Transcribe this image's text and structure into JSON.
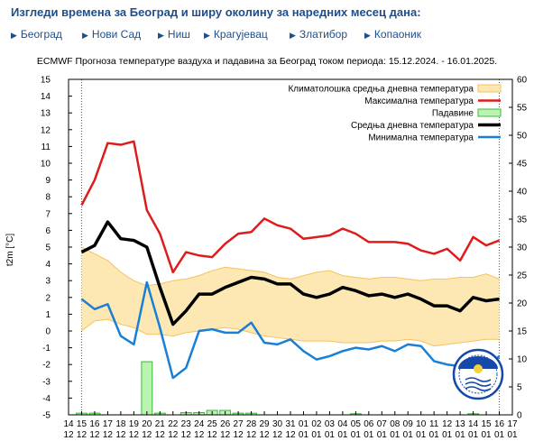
{
  "header": {
    "title": "Изгледи времена за Београд и ширу околину за наредних месец дана:"
  },
  "nav": {
    "cities": [
      "Београд",
      "Нови Сад",
      "Ниш",
      "Крагујевац",
      "Златибор",
      "Копаоник"
    ]
  },
  "icons": {
    "nav_arrow": "triangle-right-icon",
    "logo": "rhmz-logo"
  },
  "colors": {
    "max": "#dd1c1c",
    "mean": "#000000",
    "min": "#1a7fd6",
    "clim_fill": "#fde8b4",
    "clim_line": "#f3c35a",
    "precip_fill": "#b9f5b1",
    "precip_line": "#3cb83c",
    "title_blue": "#1f4e8c",
    "logo_blue": "#1548a8"
  },
  "chart_data": {
    "type": "line",
    "title": "ECMWF Прогноза температуре ваздуха и падавина за Београд током периода: 15.12.2024. - 16.01.2025.",
    "ylabel": "t2m [°C]",
    "ylim": [
      -5,
      15
    ],
    "y2lim": [
      0,
      60
    ],
    "y_ticks": [
      -5,
      -4,
      -3,
      -2,
      -1,
      0,
      1,
      2,
      3,
      4,
      5,
      6,
      7,
      8,
      9,
      10,
      11,
      12,
      13,
      14,
      15
    ],
    "y2_ticks": [
      0,
      5,
      10,
      15,
      20,
      25,
      30,
      35,
      40,
      45,
      50,
      55,
      60
    ],
    "x_tick_labels": [
      [
        "14",
        "12"
      ],
      [
        "15",
        "12"
      ],
      [
        "16",
        "12"
      ],
      [
        "17",
        "12"
      ],
      [
        "18",
        "12"
      ],
      [
        "19",
        "12"
      ],
      [
        "20",
        "12"
      ],
      [
        "21",
        "12"
      ],
      [
        "22",
        "12"
      ],
      [
        "23",
        "12"
      ],
      [
        "24",
        "12"
      ],
      [
        "25",
        "12"
      ],
      [
        "26",
        "12"
      ],
      [
        "27",
        "12"
      ],
      [
        "28",
        "12"
      ],
      [
        "29",
        "12"
      ],
      [
        "30",
        "12"
      ],
      [
        "31",
        "12"
      ],
      [
        "01",
        "01"
      ],
      [
        "02",
        "01"
      ],
      [
        "03",
        "01"
      ],
      [
        "04",
        "01"
      ],
      [
        "05",
        "01"
      ],
      [
        "06",
        "01"
      ],
      [
        "07",
        "01"
      ],
      [
        "08",
        "01"
      ],
      [
        "09",
        "01"
      ],
      [
        "10",
        "01"
      ],
      [
        "11",
        "01"
      ],
      [
        "12",
        "01"
      ],
      [
        "13",
        "01"
      ],
      [
        "14",
        "01"
      ],
      [
        "15",
        "01"
      ],
      [
        "16",
        "01"
      ],
      [
        "17",
        "01"
      ]
    ],
    "legend": [
      "Климатолошка средња дневна температура",
      "Максимална температура",
      "Падавине",
      "Средња дневна температура",
      "Минимална температура"
    ],
    "legend_position": "top-right",
    "x": [
      1,
      2,
      3,
      4,
      5,
      6,
      7,
      8,
      9,
      10,
      11,
      12,
      13,
      14,
      15,
      16,
      17,
      18,
      19,
      20,
      21,
      22,
      23,
      24,
      25,
      26,
      27,
      28,
      29,
      30,
      31,
      32,
      33
    ],
    "series": [
      {
        "name": "Максимална температура",
        "color_key": "max",
        "values": [
          7.5,
          9.0,
          11.2,
          11.1,
          11.3,
          7.2,
          5.8,
          3.5,
          4.7,
          4.5,
          4.4,
          5.2,
          5.8,
          5.9,
          6.7,
          6.3,
          6.1,
          5.5,
          5.6,
          5.7,
          6.1,
          5.8,
          5.3,
          5.3,
          5.3,
          5.2,
          4.8,
          4.6,
          4.9,
          4.2,
          5.6,
          5.1,
          5.4
        ]
      },
      {
        "name": "Средња дневна температура",
        "color_key": "mean",
        "values": [
          4.7,
          5.1,
          6.5,
          5.5,
          5.4,
          5.0,
          2.6,
          0.4,
          1.2,
          2.2,
          2.2,
          2.6,
          2.9,
          3.2,
          3.1,
          2.8,
          2.8,
          2.2,
          2.0,
          2.2,
          2.6,
          2.4,
          2.1,
          2.2,
          2.0,
          2.2,
          1.9,
          1.5,
          1.5,
          1.2,
          2.0,
          1.8,
          1.9
        ]
      },
      {
        "name": "Минимална температура",
        "color_key": "min",
        "values": [
          1.9,
          1.3,
          1.6,
          -0.3,
          -0.8,
          2.9,
          0.2,
          -2.8,
          -2.2,
          0.0,
          0.1,
          -0.1,
          -0.1,
          0.5,
          -0.7,
          -0.8,
          -0.5,
          -1.2,
          -1.7,
          -1.5,
          -1.2,
          -1.0,
          -1.1,
          -0.9,
          -1.2,
          -0.8,
          -0.9,
          -1.8,
          -2.0,
          -2.1,
          -2.0,
          -2.2,
          -1.5
        ]
      }
    ],
    "climatology": {
      "name": "Климатолошка средња дневна температура",
      "upper": [
        5.0,
        4.6,
        4.2,
        3.5,
        3.0,
        2.7,
        2.8,
        3.0,
        3.1,
        3.3,
        3.6,
        3.8,
        3.7,
        3.6,
        3.5,
        3.2,
        3.1,
        3.3,
        3.5,
        3.6,
        3.3,
        3.2,
        3.1,
        3.2,
        3.2,
        3.1,
        3.0,
        3.1,
        3.1,
        3.2,
        3.2,
        3.4,
        3.1
      ],
      "lower": [
        0.0,
        0.6,
        0.7,
        0.4,
        0.2,
        -0.2,
        -0.2,
        -0.3,
        -0.1,
        0.0,
        0.1,
        0.2,
        0.1,
        -0.1,
        -0.3,
        -0.4,
        -0.5,
        -0.6,
        -0.6,
        -0.6,
        -0.7,
        -0.7,
        -0.7,
        -0.6,
        -0.6,
        -0.5,
        -0.6,
        -0.9,
        -0.8,
        -0.7,
        -0.6,
        -0.5,
        -0.5
      ]
    },
    "precipitation": {
      "name": "Падавине",
      "unit": "mm",
      "values": [
        0.3,
        0.3,
        0,
        0,
        0,
        9.5,
        0.3,
        0,
        0.4,
        0.4,
        0.8,
        0.8,
        0.3,
        0.3,
        0,
        0,
        0,
        0,
        0,
        0,
        0,
        0.2,
        0,
        0,
        0,
        0,
        0,
        0,
        0,
        0,
        0.2,
        0,
        0
      ]
    },
    "grid": false
  }
}
